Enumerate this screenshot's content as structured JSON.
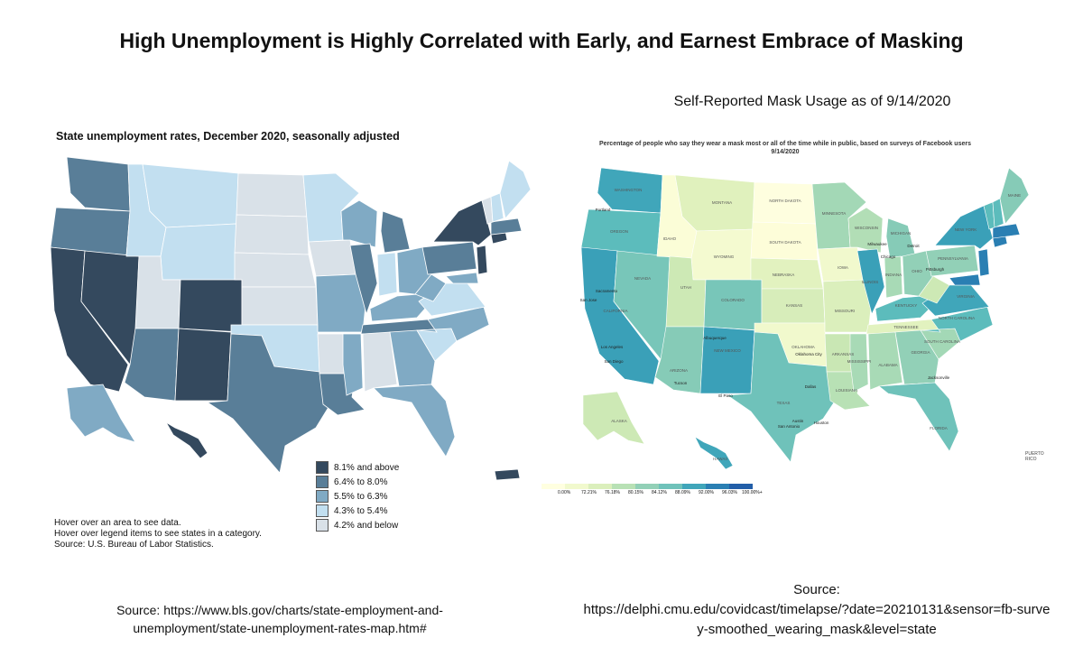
{
  "page": {
    "title": "High Unemployment is Highly Correlated with Early, and Earnest Embrace of Masking",
    "right_subtitle": "Self-Reported Mask Usage as of 9/14/2020"
  },
  "left_map": {
    "title": "State unemployment rates, December 2020, seasonally adjusted",
    "legend": [
      {
        "label": "8.1% and above",
        "color": "#34495e"
      },
      {
        "label": "6.4% to 8.0%",
        "color": "#597e98"
      },
      {
        "label": "5.5% to 6.3%",
        "color": "#80aac4"
      },
      {
        "label": "4.3% to 5.4%",
        "color": "#c2dff0"
      },
      {
        "label": "4.2% and below",
        "color": "#d9e1e8"
      }
    ],
    "notes": [
      "Hover over an area to see data.",
      "Hover over legend items to see states in a category.",
      "Source: U.S. Bureau of Labor Statistics."
    ],
    "source_line1": "Source: https://www.bls.gov/charts/state-employment-and-",
    "source_line2": "unemployment/state-unemployment-rates-map.htm#"
  },
  "right_map": {
    "title_line1": "Percentage of people who say they wear a mask most or all of the time while in public, based on surveys of Facebook users",
    "title_line2": "9/14/2020",
    "state_labels": [
      "MONTANA",
      "NORTH DAKOTA",
      "IDAHO",
      "SOUTH DAKOTA",
      "WYOMING",
      "NEBRASKA",
      "IOWA",
      "UTAH",
      "COLORADO",
      "KANSAS",
      "MISSOURI",
      "NEVADA",
      "CALIFORNIA",
      "ARIZONA",
      "NEW MEXICO",
      "OKLAHOMA",
      "TEXAS",
      "ARKANSAS",
      "LOUISIANA",
      "TENNESSEE",
      "MISSISSIPPI",
      "ALABAMA",
      "GEORGIA",
      "FLORIDA",
      "SOUTH CAROLINA",
      "NORTH CAROLINA",
      "VIRGINIA",
      "KENTUCKY",
      "INDIANA",
      "OHIO",
      "ILLINOIS",
      "WISCONSIN",
      "MINNESOTA",
      "MICHIGAN",
      "PENNSYLVANIA",
      "NEW YORK",
      "MAINE",
      "OREGON",
      "WASHINGTON",
      "ALASKA",
      "HAWAII"
    ],
    "city_labels": [
      "Portland",
      "Sacramento",
      "San Jose",
      "Los Angeles",
      "San Diego",
      "Tucson",
      "Albuquerque",
      "El Paso",
      "Dallas",
      "Austin",
      "San Antonio",
      "Houston",
      "Oklahoma City",
      "Chicago",
      "Milwaukee",
      "Detroit",
      "Pittsburgh",
      "Jacksonville"
    ],
    "puerto_rico": "PUERTO RICO",
    "legend_ticks": [
      "0.00%",
      "72.21%",
      "76.18%",
      "80.15%",
      "84.12%",
      "88.09%",
      "92.00%",
      "96.03%",
      "100.00%+"
    ],
    "source_label": "Source:",
    "source_url": "https://delphi.cmu.edu/covidcast/timelapse/?date=20210131&sensor=fb-survey-smoothed_wearing_mask&level=state"
  }
}
